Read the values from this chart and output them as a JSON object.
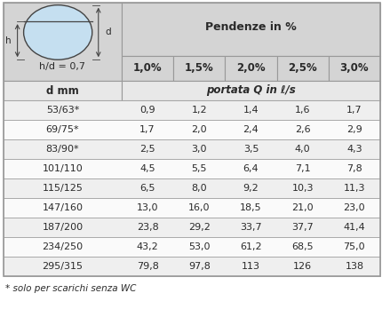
{
  "pct_labels": [
    "1,0%",
    "1,5%",
    "2,0%",
    "2,5%",
    "3,0%"
  ],
  "rows": [
    [
      "53/63*",
      "0,9",
      "1,2",
      "1,4",
      "1,6",
      "1,7"
    ],
    [
      "69/75*",
      "1,7",
      "2,0",
      "2,4",
      "2,6",
      "2,9"
    ],
    [
      "83/90*",
      "2,5",
      "3,0",
      "3,5",
      "4,0",
      "4,3"
    ],
    [
      "101/110",
      "4,5",
      "5,5",
      "6,4",
      "7,1",
      "7,8"
    ],
    [
      "115/125",
      "6,5",
      "8,0",
      "9,2",
      "10,3",
      "11,3"
    ],
    [
      "147/160",
      "13,0",
      "16,0",
      "18,5",
      "21,0",
      "23,0"
    ],
    [
      "187/200",
      "23,8",
      "29,2",
      "33,7",
      "37,7",
      "41,4"
    ],
    [
      "234/250",
      "43,2",
      "53,0",
      "61,2",
      "68,5",
      "75,0"
    ],
    [
      "295/315",
      "79,8",
      "97,8",
      "113",
      "126",
      "138"
    ]
  ],
  "footnote": "* solo per scarichi senza WC",
  "bg_header": "#d4d4d4",
  "bg_subheader": "#e8e8e8",
  "bg_row_odd": "#efefef",
  "bg_row_even": "#fafafa",
  "border_color": "#999999",
  "text_color": "#2a2a2a",
  "circle_fill": "#c5dff0",
  "circle_edge": "#444444",
  "pendenze_label": "Pendenze in %",
  "dmm_label": "d mm",
  "portata_label": "portata Q in ℓ/s",
  "hd_label": "h/d = 0,7"
}
